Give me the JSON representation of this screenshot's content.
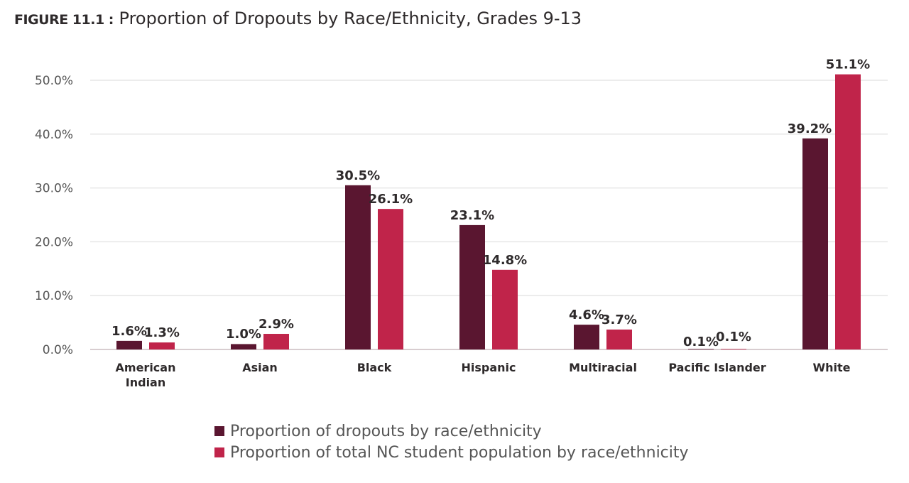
{
  "title": {
    "figure_label": "FIGURE 11.1 :",
    "text": "Proportion of Dropouts by Race/Ethnicity, Grades 9-13"
  },
  "chart_data": {
    "type": "bar",
    "title": "Proportion of Dropouts by Race/Ethnicity, Grades 9-13",
    "categories": [
      "American Indian",
      "Asian",
      "Black",
      "Hispanic",
      "Multiracial",
      "Pacific Islander",
      "White"
    ],
    "series": [
      {
        "name": "Proportion of dropouts by race/ethnicity",
        "color": "#5a1630",
        "values": [
          1.6,
          1.0,
          30.5,
          23.1,
          4.6,
          0.1,
          39.2
        ],
        "labels": [
          "1.6%",
          "1.0%",
          "30.5%",
          "23.1%",
          "4.6%",
          "0.1%",
          "39.2%"
        ]
      },
      {
        "name": "Proportion of total NC student population by race/ethnicity",
        "color": "#c0244a",
        "values": [
          1.3,
          2.9,
          26.1,
          14.8,
          3.7,
          0.1,
          51.1
        ],
        "labels": [
          "1.3%",
          "2.9%",
          "26.1%",
          "14.8%",
          "3.7%",
          "0.1%",
          "51.1%"
        ]
      }
    ],
    "yticks": [
      "0.0%",
      "10.0%",
      "20.0%",
      "30.0%",
      "40.0%",
      "50.0%"
    ],
    "ylim": [
      0,
      50
    ],
    "grid": true,
    "legend_position": "bottom",
    "xlabel": "",
    "ylabel": ""
  }
}
